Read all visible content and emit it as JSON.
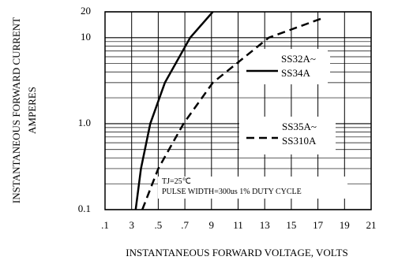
{
  "chart_data": {
    "type": "line",
    "x_label": "INSTANTANEOUS FORWARD VOLTAGE, VOLTS",
    "y_label": [
      "INSTANTANEOUS FORWARD CURRENT",
      "AMPERES"
    ],
    "annotations": [
      "TJ=25℃",
      "PULSE WIDTH=300us 1% DUTY CYCLE"
    ],
    "log_y": true,
    "grid": true,
    "xlim": [
      0.1,
      2.1
    ],
    "ylim": [
      0.1,
      20
    ],
    "xticks": [
      {
        "value": 0.1,
        "label": ".1"
      },
      {
        "value": 0.3,
        "label": "3"
      },
      {
        "value": 0.5,
        "label": ".5"
      },
      {
        "value": 0.7,
        "label": ".7"
      },
      {
        "value": 0.9,
        "label": "9"
      },
      {
        "value": 1.1,
        "label": "11"
      },
      {
        "value": 1.3,
        "label": "13"
      },
      {
        "value": 1.5,
        "label": "15"
      },
      {
        "value": 1.7,
        "label": "17"
      },
      {
        "value": 1.9,
        "label": "19"
      },
      {
        "value": 2.1,
        "label": "21"
      }
    ],
    "yticks": [
      0.1,
      {
        "value": 1,
        "label": "1.0"
      },
      10,
      20
    ],
    "series": [
      {
        "name": "SS32A~ SS34A",
        "color": "#000000",
        "dash": false,
        "x": [
          0.33,
          0.37,
          0.44,
          0.55,
          0.74,
          0.91
        ],
        "values": [
          0.1,
          0.3,
          1,
          3,
          10,
          20
        ]
      },
      {
        "name": "SS35A~ SS310A",
        "color": "#000000",
        "dash": true,
        "x": [
          0.38,
          0.5,
          0.69,
          0.91,
          1.33,
          1.74
        ],
        "values": [
          0.1,
          0.3,
          1,
          3,
          10,
          17
        ]
      }
    ]
  }
}
